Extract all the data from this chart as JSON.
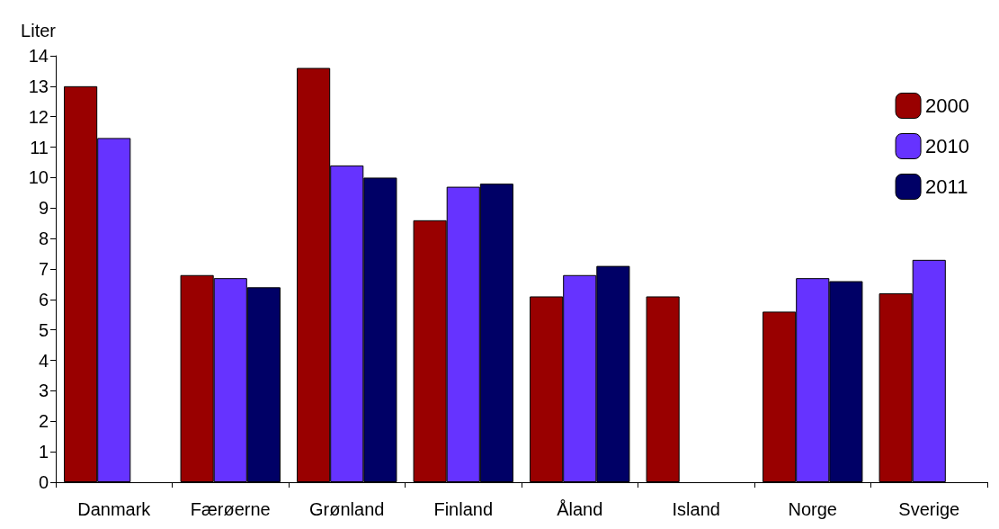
{
  "chart_data": {
    "type": "bar",
    "ylabel": "Liter",
    "categories": [
      "Danmark",
      "Færøerne",
      "Grønland",
      "Finland",
      "Åland",
      "Island",
      "Norge",
      "Sverige"
    ],
    "series": [
      {
        "name": "2000",
        "color": "#990000",
        "values": [
          13.0,
          6.8,
          13.6,
          8.6,
          6.1,
          6.1,
          5.6,
          6.2
        ]
      },
      {
        "name": "2010",
        "color": "#6633ff",
        "values": [
          11.3,
          6.7,
          10.4,
          9.7,
          6.8,
          null,
          6.7,
          7.3
        ]
      },
      {
        "name": "2011",
        "color": "#000066",
        "values": [
          null,
          6.4,
          10.0,
          9.8,
          7.1,
          null,
          6.6,
          null
        ]
      }
    ],
    "ylim": [
      0,
      14
    ],
    "yticks": [
      0,
      1,
      2,
      3,
      4,
      5,
      6,
      7,
      8,
      9,
      10,
      11,
      12,
      13,
      14
    ],
    "grid": false,
    "legend": "top right"
  }
}
